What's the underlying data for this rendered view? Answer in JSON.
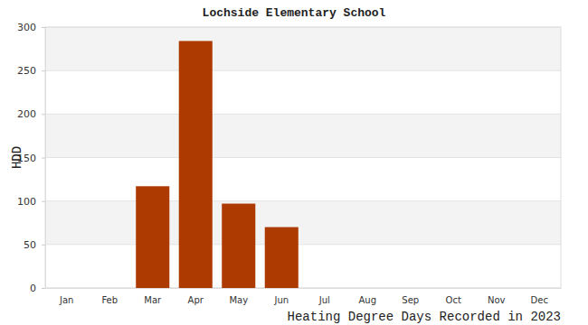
{
  "chart_data": {
    "type": "bar",
    "title": "Lochside Elementary School",
    "y_label": "HDD",
    "x_label": "Heating Degree Days Recorded in 2023",
    "categories": [
      "Jan",
      "Feb",
      "Mar",
      "Apr",
      "May",
      "Jun",
      "Jul",
      "Aug",
      "Sep",
      "Oct",
      "Nov",
      "Dec"
    ],
    "values": [
      0,
      0,
      117,
      284,
      97,
      70,
      0,
      0,
      0,
      0,
      0,
      0
    ],
    "color": "#ad3a00",
    "ylim": [
      0,
      300
    ],
    "yticks": [
      0,
      50,
      100,
      150,
      200,
      250,
      300
    ],
    "grid": true
  }
}
